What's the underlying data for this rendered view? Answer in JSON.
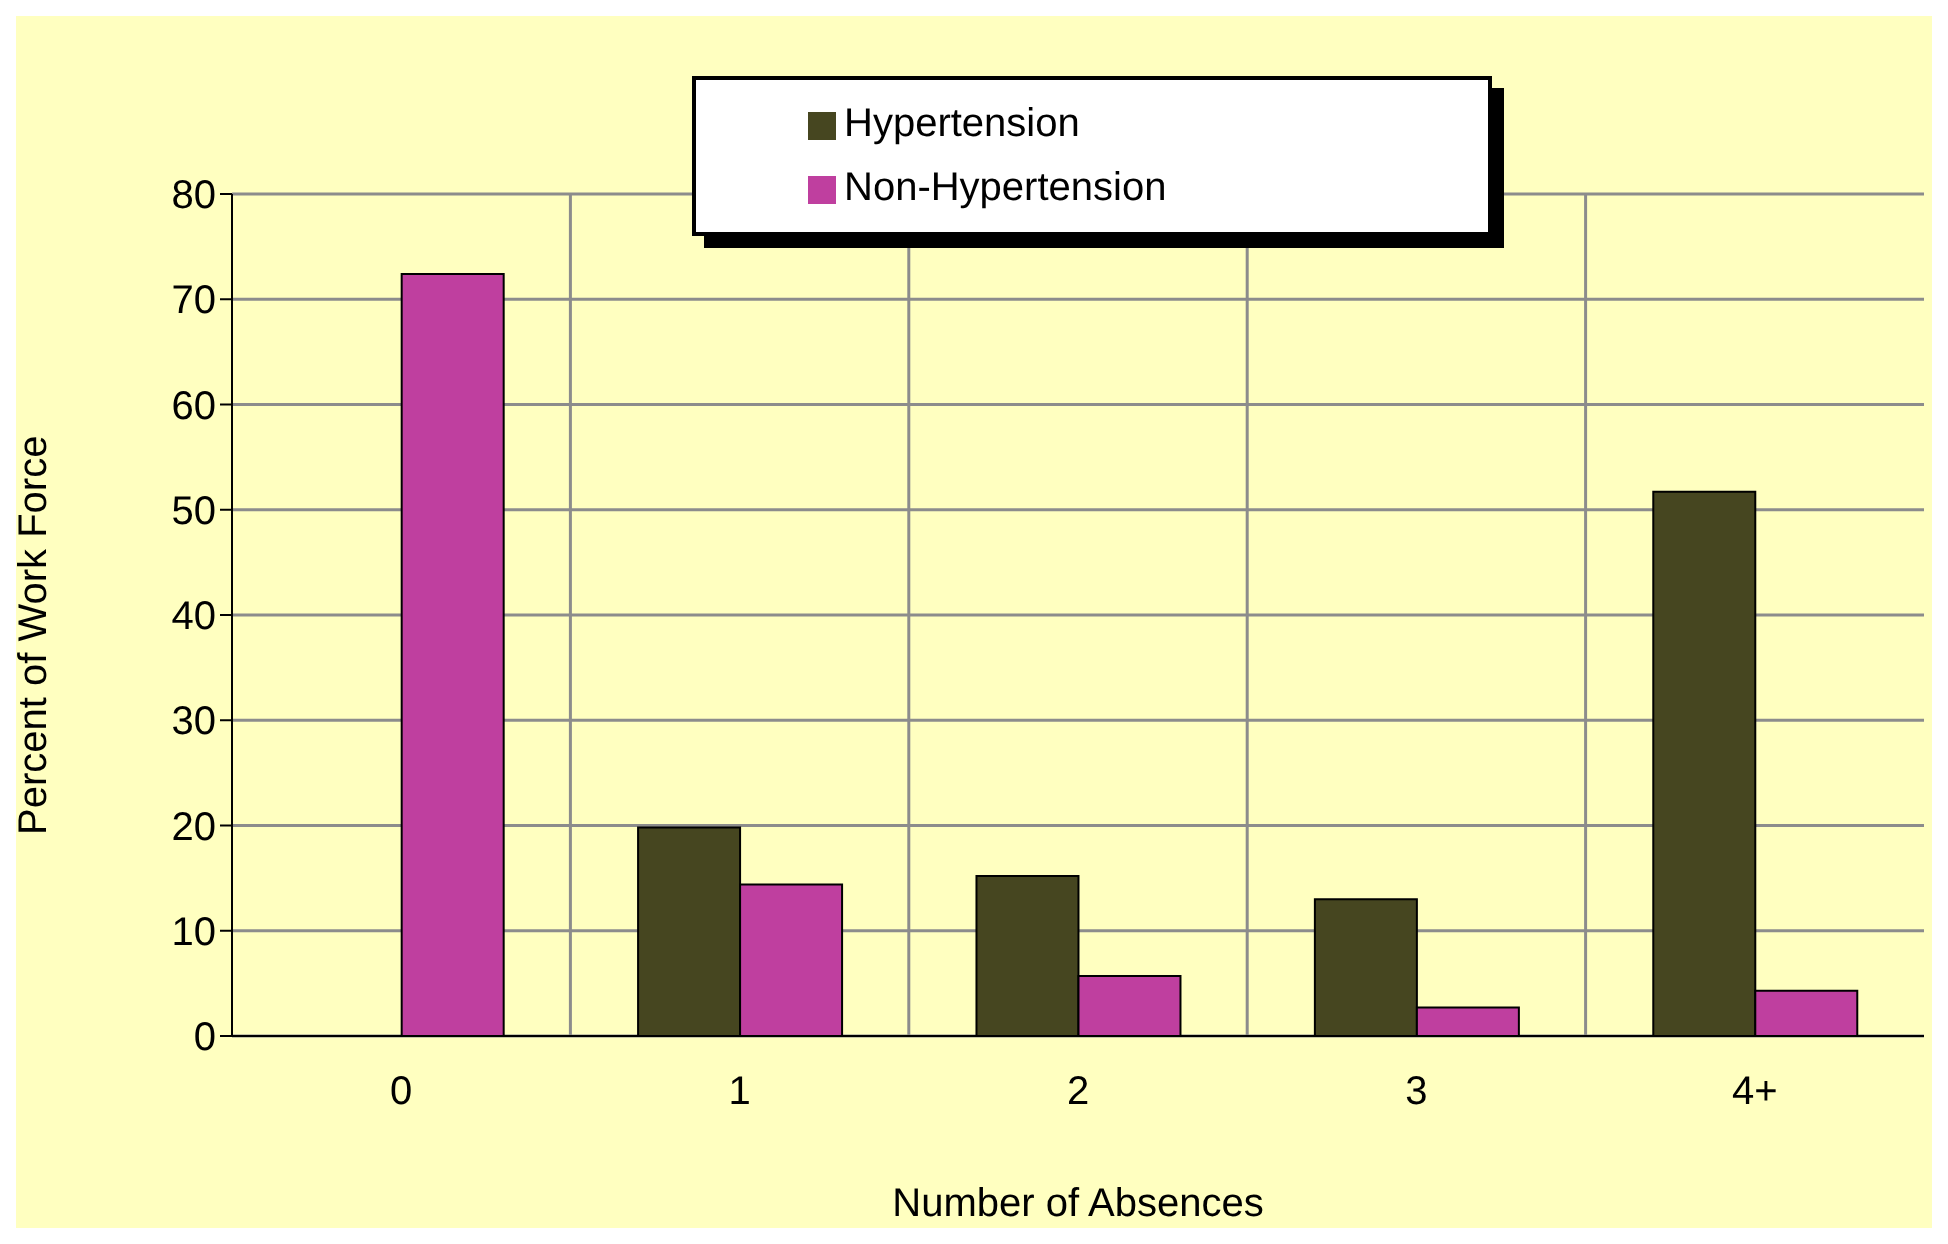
{
  "chart_data": {
    "type": "bar",
    "xlabel": "Number of Absences",
    "ylabel": "Percent of Work Force",
    "categories": [
      "0",
      "1",
      "2",
      "3",
      "4+"
    ],
    "series": [
      {
        "name": "Hypertension",
        "color": "#464620",
        "values": [
          0,
          19.8,
          15.2,
          13.0,
          51.7
        ]
      },
      {
        "name": "Non-Hypertension",
        "color": "#bf3f9f",
        "values": [
          72.4,
          14.4,
          5.7,
          2.7,
          4.3
        ]
      }
    ],
    "ylim": [
      0,
      80
    ],
    "yticks": [
      0,
      10,
      20,
      30,
      40,
      50,
      60,
      70,
      80
    ],
    "grid": true,
    "legend": "top"
  }
}
